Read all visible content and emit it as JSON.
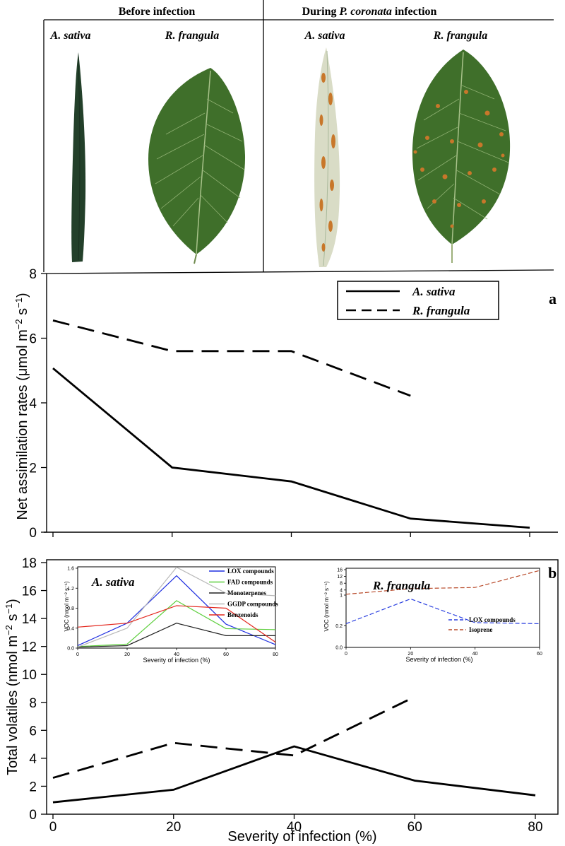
{
  "photo_panel": {
    "headers": {
      "before": "Before infection",
      "during_prefix": "During ",
      "during_species": "P. coronata",
      "during_suffix": " infection"
    },
    "labels": {
      "before_a": "A. sativa",
      "before_r": "R. frangula",
      "during_a": "A. sativa",
      "during_r": "R. frangula"
    },
    "colors": {
      "healthy_leaf": "#3f6f2a",
      "healthy_leaf_dark": "#2a4f1e",
      "grass_leaf": "#23402a",
      "infected_grass": "#d9dcc6",
      "rust_pustule": "#c8772a"
    }
  },
  "chart_data": [
    {
      "id": "a",
      "type": "line",
      "panel_label": "a",
      "ylabel": "Net assimilation rates (μmol m⁻² s⁻¹)",
      "ylabel_main": "Net assimilation rates (",
      "ylabel_unit": "μmol m",
      "ylabel_exp1": "−2",
      "ylabel_mid": " s",
      "ylabel_exp2": "−1",
      "ylabel_end": ")",
      "xlim": [
        0,
        80
      ],
      "ylim": [
        0,
        8
      ],
      "yticks": [
        "0",
        "2",
        "4",
        "6",
        "8"
      ],
      "legend": [
        "A. sativa",
        "R. frangula"
      ],
      "series": [
        {
          "name": "A. sativa",
          "style": "solid",
          "x": [
            0,
            20,
            40,
            60,
            80
          ],
          "y": [
            5.07,
            2.0,
            1.57,
            0.42,
            0.14
          ]
        },
        {
          "name": "R. frangula",
          "style": "dashed",
          "x": [
            0,
            20,
            40,
            60
          ],
          "y": [
            6.55,
            5.6,
            5.6,
            4.22
          ]
        }
      ]
    },
    {
      "id": "b",
      "type": "line",
      "panel_label": "b",
      "xlabel": "Severity of infection (%)",
      "ylabel_main": "Total volatiles (nmol m",
      "ylabel_exp1": "−2",
      "ylabel_mid": " s",
      "ylabel_exp2": "−1",
      "ylabel_end": ")",
      "xlim": [
        0,
        80
      ],
      "ylim": [
        0,
        18
      ],
      "xticks": [
        "0",
        "20",
        "40",
        "60",
        "80"
      ],
      "yticks": [
        "0",
        "2",
        "4",
        "6",
        "8",
        "10",
        "12",
        "14",
        "16",
        "18"
      ],
      "series": [
        {
          "name": "A. sativa",
          "style": "solid",
          "x": [
            0,
            20,
            40,
            60,
            80
          ],
          "y": [
            0.85,
            1.75,
            4.85,
            2.4,
            1.35
          ]
        },
        {
          "name": "R. frangula",
          "style": "dashed",
          "x": [
            0,
            20,
            40,
            60
          ],
          "y": [
            2.6,
            5.1,
            4.2,
            8.4
          ]
        }
      ]
    },
    {
      "id": "inset-a-sativa",
      "type": "line",
      "title": "A. sativa",
      "xlabel": "Severity of infection (%)",
      "ylabel": "VOC (nmol m⁻² s⁻¹)",
      "xlim": [
        0,
        80
      ],
      "ylim": [
        0,
        1.6
      ],
      "xticks": [
        "0",
        "20",
        "40",
        "60",
        "80"
      ],
      "yticks": [
        "0.0",
        "0.4",
        "0.8",
        "1.2",
        "1.6"
      ],
      "series": [
        {
          "name": "LOX compounds",
          "color": "#1f2fe0",
          "x": [
            0,
            20,
            40,
            60,
            80
          ],
          "y": [
            0.05,
            0.5,
            1.45,
            0.48,
            0.07
          ]
        },
        {
          "name": "FAD compounds",
          "color": "#5fcf3f",
          "x": [
            0,
            20,
            40,
            60,
            80
          ],
          "y": [
            0.03,
            0.08,
            0.95,
            0.39,
            0.37
          ]
        },
        {
          "name": "Monoterpenes",
          "color": "#222222",
          "x": [
            0,
            20,
            40,
            60,
            80
          ],
          "y": [
            0.02,
            0.05,
            0.5,
            0.25,
            0.25
          ]
        },
        {
          "name": "GGDP compounds",
          "color": "#b9b9b9",
          "x": [
            0,
            20,
            40,
            60,
            80
          ],
          "y": [
            0.02,
            0.4,
            1.7,
            1.1,
            1.05
          ]
        },
        {
          "name": "Benzenoids",
          "color": "#e3261d",
          "x": [
            0,
            20,
            40,
            60,
            80
          ],
          "y": [
            0.42,
            0.5,
            0.85,
            0.8,
            0.12
          ]
        }
      ]
    },
    {
      "id": "inset-r-frangula",
      "type": "line",
      "title": "R. frangula",
      "xlabel": "Severity of infection (%)",
      "ylabel": "VOC (nmol m⁻² s⁻¹)",
      "xlim": [
        0,
        60
      ],
      "xticks": [
        "0",
        "20",
        "40",
        "60"
      ],
      "yticks": [
        "0.0",
        "0.2",
        "1",
        "4",
        "8",
        "12",
        "16"
      ],
      "series": [
        {
          "name": "LOX compounds",
          "color": "#2a3fe0",
          "x": [
            0,
            20,
            40,
            60
          ],
          "y": [
            0.22,
            0.45,
            0.23,
            0.22
          ]
        },
        {
          "name": "Isoprene",
          "color": "#b84a2a",
          "x": [
            0,
            20,
            40,
            60
          ],
          "y": [
            1.5,
            4.8,
            5.5,
            15.5
          ]
        }
      ]
    }
  ]
}
